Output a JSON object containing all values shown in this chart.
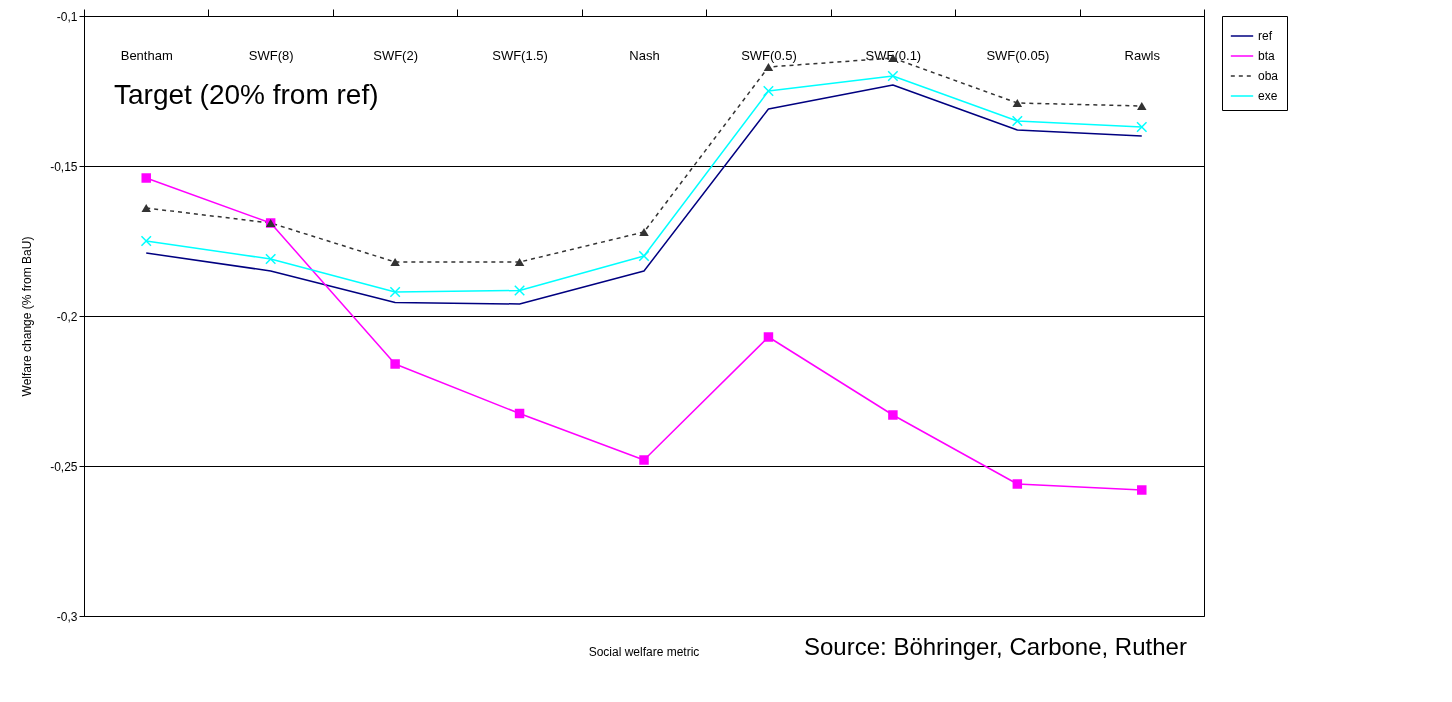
{
  "chart_data": {
    "type": "line",
    "xlabel": "Social welfare metric",
    "ylabel": "Welfare change (% from BaU)",
    "categories": [
      "Bentham",
      "SWF(8)",
      "SWF(2)",
      "SWF(1.5)",
      "Nash",
      "SWF(0.5)",
      "SWF(0.1)",
      "SWF(0.05)",
      "Rawls"
    ],
    "series": [
      {
        "name": "ref",
        "color": "#000080",
        "marker": "none",
        "line_style": "solid",
        "values": [
          -0.179,
          -0.185,
          -0.1955,
          -0.196,
          -0.185,
          -0.131,
          -0.123,
          -0.138,
          -0.14
        ]
      },
      {
        "name": "bta",
        "color": "#ff00ff",
        "marker": "square",
        "line_style": "solid",
        "values": [
          -0.154,
          -0.169,
          -0.216,
          -0.2325,
          -0.248,
          -0.207,
          -0.233,
          -0.256,
          -0.258
        ]
      },
      {
        "name": "oba",
        "color": "#333333",
        "marker": "triangle",
        "line_style": "dashed",
        "values": [
          -0.164,
          -0.169,
          -0.182,
          -0.182,
          -0.172,
          -0.117,
          -0.114,
          -0.129,
          -0.13
        ]
      },
      {
        "name": "exe",
        "color": "#00ffff",
        "marker": "cross",
        "line_style": "solid",
        "values": [
          -0.175,
          -0.181,
          -0.192,
          -0.1915,
          -0.18,
          -0.125,
          -0.12,
          -0.135,
          -0.137
        ]
      }
    ],
    "ylim": [
      -0.3,
      -0.1
    ],
    "yticks": [
      {
        "value": -0.3,
        "label": "-0,3"
      },
      {
        "value": -0.25,
        "label": "-0,25"
      },
      {
        "value": -0.2,
        "label": "-0,2"
      },
      {
        "value": -0.15,
        "label": "-0,15"
      },
      {
        "value": -0.1,
        "label": "-0,1"
      }
    ],
    "grid": "y",
    "legend": "right",
    "annotations": [
      "Target (20% from ref)",
      "Source: Böhringer, Carbone, Ruther"
    ]
  }
}
